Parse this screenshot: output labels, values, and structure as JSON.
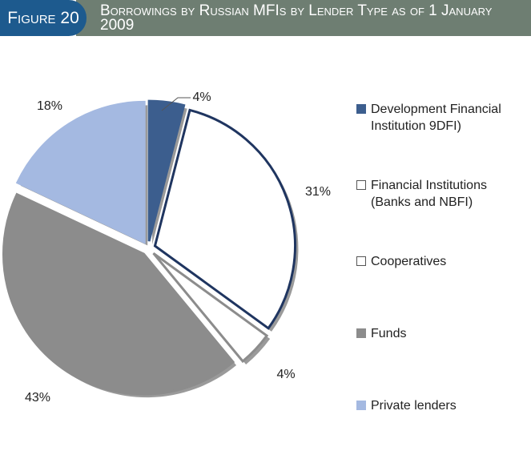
{
  "figure_label": "Figure 20",
  "chart_data": {
    "type": "pie",
    "title": "Borrowings by Russian MFIs by Lender Type as of 1 January 2009",
    "categories": [
      "Development Financial Institution 9DFI)",
      "Financial Institutions (Banks and NBFI)",
      "Cooperatives",
      "Funds",
      "Private lenders"
    ],
    "values": [
      4,
      31,
      4,
      43,
      18
    ],
    "value_labels": [
      "4%",
      "31%",
      "4%",
      "43%",
      "18%"
    ],
    "colors": [
      "#3c5e8e",
      "#ffffff",
      "#ffffff",
      "#8c8c8c",
      "#a4b9e1"
    ],
    "edge_colors": [
      "#3c5e8e",
      "#1f3560",
      "#8c8c8c",
      "#8c8c8c",
      "#a4b9e1"
    ],
    "legend": "right"
  }
}
